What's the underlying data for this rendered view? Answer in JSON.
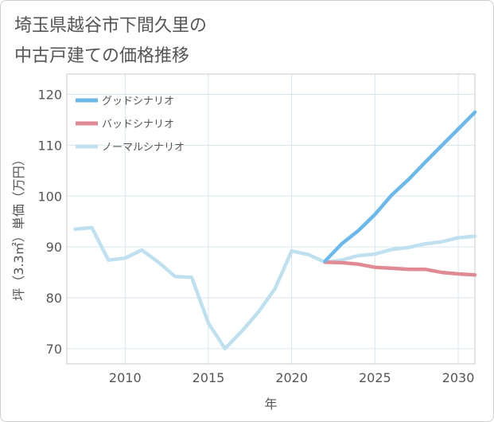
{
  "chart_data": {
    "type": "line",
    "title": [
      "埼玉県越谷市下間久里の",
      "中古戸建ての価格推移"
    ],
    "xlabel": "年",
    "ylabel": "坪（3.3㎡）単価（万円）",
    "xlim": [
      2006.5,
      2031
    ],
    "ylim": [
      67,
      124
    ],
    "xticks": [
      2010,
      2015,
      2020,
      2025,
      2030
    ],
    "yticks": [
      70,
      80,
      90,
      100,
      110,
      120
    ],
    "grid": true,
    "legend_position": "top-left",
    "series": [
      {
        "name": "グッドシナリオ",
        "color": "#6bb8ea",
        "points": [
          [
            2022,
            87.2
          ],
          [
            2023,
            90.6
          ],
          [
            2024,
            93.2
          ],
          [
            2025,
            96.4
          ],
          [
            2026,
            100.2
          ],
          [
            2027,
            103.2
          ],
          [
            2028,
            106.6
          ],
          [
            2029,
            109.9
          ],
          [
            2030,
            113.2
          ],
          [
            2031,
            116.5
          ]
        ]
      },
      {
        "name": "バッドシナリオ",
        "color": "#e08a93",
        "points": [
          [
            2022,
            87.0
          ],
          [
            2023,
            86.9
          ],
          [
            2024,
            86.6
          ],
          [
            2025,
            86.0
          ],
          [
            2026,
            85.8
          ],
          [
            2027,
            85.6
          ],
          [
            2028,
            85.6
          ],
          [
            2029,
            85.0
          ],
          [
            2030,
            84.7
          ],
          [
            2031,
            84.5
          ]
        ]
      },
      {
        "name": "ノーマルシナリオ",
        "color": "#bfe0ef",
        "points": [
          [
            2007,
            93.5
          ],
          [
            2008,
            93.8
          ],
          [
            2009,
            87.4
          ],
          [
            2010,
            87.8
          ],
          [
            2011,
            89.4
          ],
          [
            2012,
            87.0
          ],
          [
            2013,
            84.2
          ],
          [
            2014,
            84.0
          ],
          [
            2015,
            75.0
          ],
          [
            2016,
            70.0
          ],
          [
            2017,
            73.4
          ],
          [
            2018,
            77.2
          ],
          [
            2019,
            81.8
          ],
          [
            2020,
            89.2
          ],
          [
            2021,
            88.5
          ],
          [
            2022,
            87.0
          ],
          [
            2023,
            87.4
          ],
          [
            2024,
            88.3
          ],
          [
            2025,
            88.6
          ],
          [
            2026,
            89.5
          ],
          [
            2027,
            89.9
          ],
          [
            2028,
            90.6
          ],
          [
            2029,
            91.0
          ],
          [
            2030,
            91.8
          ],
          [
            2031,
            92.1
          ]
        ]
      }
    ]
  }
}
